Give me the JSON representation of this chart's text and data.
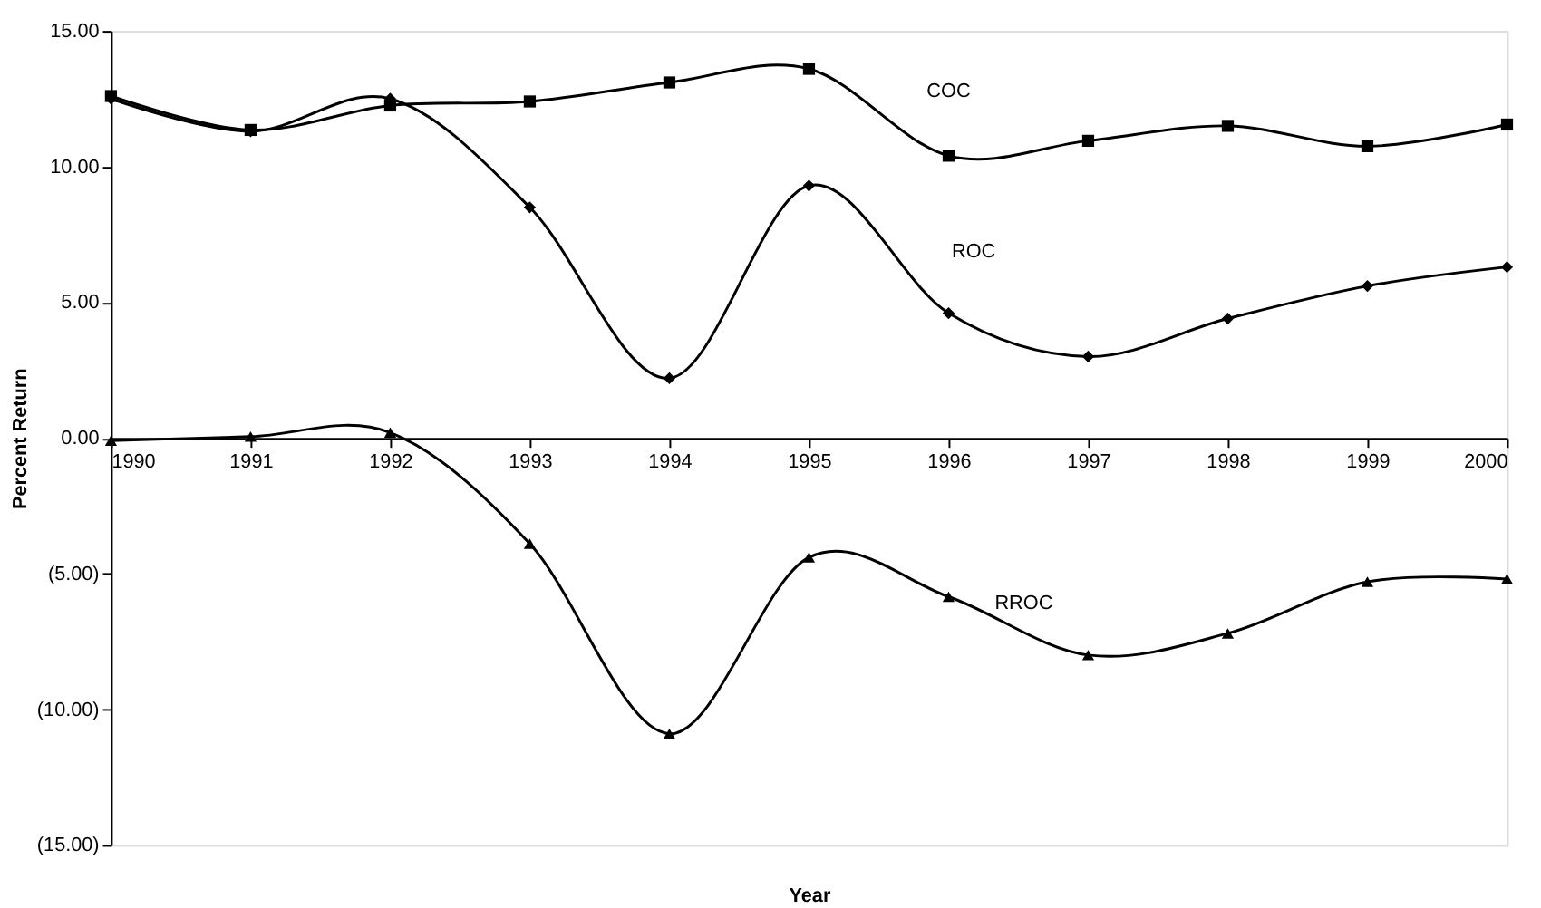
{
  "chart_data": {
    "type": "line",
    "xlabel": "Year",
    "ylabel": "Percent Return",
    "x": [
      1990,
      1991,
      1992,
      1993,
      1994,
      1995,
      1996,
      1997,
      1998,
      1999,
      2000
    ],
    "series": [
      {
        "name": "COC",
        "color": "#000000",
        "marker": "square",
        "values": [
          12.6,
          11.35,
          12.25,
          12.4,
          13.1,
          13.6,
          10.4,
          10.95,
          11.5,
          10.75,
          11.55
        ]
      },
      {
        "name": "ROC",
        "color": "#000000",
        "marker": "diamond",
        "values": [
          12.5,
          11.3,
          12.5,
          8.5,
          2.2,
          9.3,
          4.6,
          3.0,
          4.4,
          5.6,
          6.3
        ]
      },
      {
        "name": "RROC",
        "color": "#000000",
        "marker": "triangle",
        "values": [
          -0.1,
          0.05,
          0.2,
          -3.9,
          -10.9,
          -4.4,
          -5.85,
          -8.0,
          -7.2,
          -5.3,
          -5.2
        ]
      }
    ],
    "xlim": [
      1990,
      2000
    ],
    "xticks": [
      1990,
      1991,
      1992,
      1993,
      1994,
      1995,
      1996,
      1997,
      1998,
      1999,
      2000
    ],
    "ylim": [
      -15,
      15
    ],
    "yticks": [
      {
        "value": -15,
        "label": "(15.00)"
      },
      {
        "value": -10,
        "label": "(10.00)"
      },
      {
        "value": -5,
        "label": "(5.00)"
      },
      {
        "value": 0,
        "label": "0.00"
      },
      {
        "value": 5,
        "label": "5.00"
      },
      {
        "value": 10,
        "label": "10.00"
      },
      {
        "value": 15,
        "label": "15.00"
      }
    ],
    "grid": false,
    "line_style": "solid"
  }
}
